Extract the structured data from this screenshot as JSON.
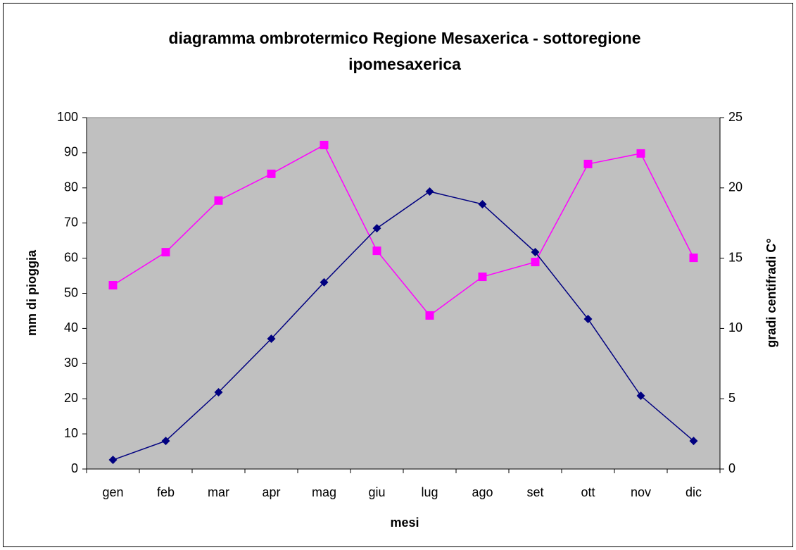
{
  "chart_data": {
    "type": "line",
    "title": [
      "diagramma ombrotermico Regione Mesaxerica - sottoregione",
      "ipomesaxerica"
    ],
    "xlabel": "mesi",
    "ylabel": "mm di pioggia",
    "y2label": "gradi centifradi C°",
    "categories": [
      "gen",
      "feb",
      "mar",
      "apr",
      "mag",
      "giu",
      "lug",
      "ago",
      "set",
      "ott",
      "nov",
      "dic"
    ],
    "series": [
      {
        "color": "#ff00ff",
        "marker": "square",
        "values": [
          52.3,
          61.7,
          76.4,
          84,
          92.2,
          62.1,
          43.7,
          54.7,
          58.9,
          86.8,
          89.8,
          60.1
        ]
      },
      {
        "color": "#000080",
        "marker": "diamond",
        "axis": "y2",
        "values": [
          0.65,
          2.0,
          5.46,
          9.27,
          13.28,
          17.13,
          19.74,
          18.84,
          15.43,
          10.67,
          5.21,
          2.0
        ]
      }
    ],
    "ylim": [
      0,
      100
    ],
    "yticks": [
      0,
      10,
      20,
      30,
      40,
      50,
      60,
      70,
      80,
      90,
      100
    ],
    "y2lim": [
      0,
      25
    ],
    "y2ticks": [
      0,
      5,
      10,
      15,
      20,
      25
    ],
    "grid": false,
    "plot_background": "#c0c0c0"
  }
}
